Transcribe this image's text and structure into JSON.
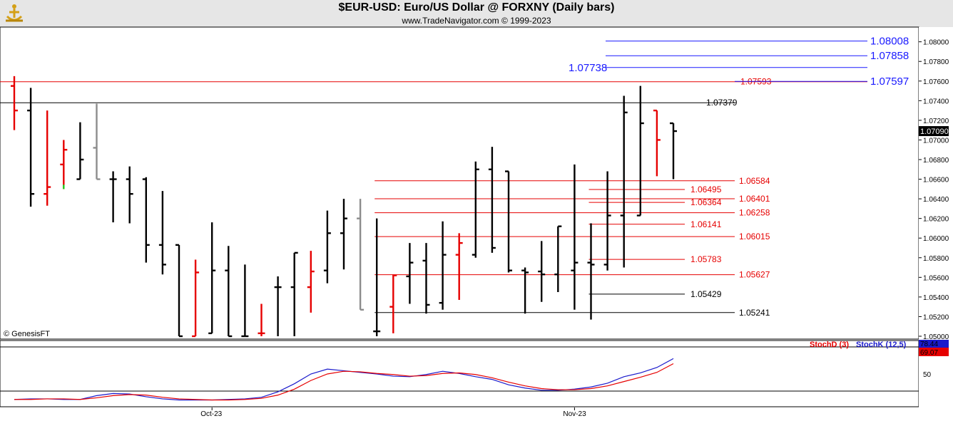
{
  "header": {
    "title": "$EUR-USD:  Euro/US Dollar @ FORXNY  (Daily bars)",
    "subtitle": "www.TradeNavigator.com © 1999-2023"
  },
  "watermark": "© GenesisFT",
  "colors": {
    "up": "#000000",
    "down": "#e60000",
    "neutral": "#8c8c8c",
    "blue_level": "#1a1aff",
    "stoch_d": "#e60000",
    "stoch_k": "#1a1acc"
  },
  "chart_data": [
    {
      "type": "ohlc",
      "title": "$EUR-USD:  Euro/US Dollar @ FORXNY  (Daily bars)",
      "ylim": [
        1.05,
        1.0815
      ],
      "y_ticks": [
        "1.05000",
        "1.05200",
        "1.05400",
        "1.05600",
        "1.05800",
        "1.06000",
        "1.06200",
        "1.06400",
        "1.06600",
        "1.06800",
        "1.07000",
        "1.07200",
        "1.07400",
        "1.07600",
        "1.07800",
        "1.08000"
      ],
      "x_labels": [
        {
          "label": "Oct-23",
          "index": 12
        },
        {
          "label": "Nov-23",
          "index": 34
        }
      ],
      "last_price": "1.07090",
      "bars": [
        {
          "o": 1.0755,
          "h": 1.0765,
          "l": 1.071,
          "c": 1.073,
          "color": "down"
        },
        {
          "o": 1.073,
          "h": 1.0753,
          "l": 1.0632,
          "c": 1.0645,
          "color": "up"
        },
        {
          "o": 1.0645,
          "h": 1.073,
          "l": 1.0633,
          "c": 1.0652,
          "color": "down"
        },
        {
          "o": 1.0675,
          "h": 1.07,
          "l": 1.065,
          "c": 1.069,
          "color": "down",
          "low_mark": "green"
        },
        {
          "o": 1.066,
          "h": 1.0718,
          "l": 1.066,
          "c": 1.068,
          "color": "up"
        },
        {
          "o": 1.0692,
          "h": 1.0737,
          "l": 1.066,
          "c": 1.066,
          "color": "neutral"
        },
        {
          "o": 1.066,
          "h": 1.0668,
          "l": 1.0616,
          "c": 1.066,
          "color": "up"
        },
        {
          "o": 1.066,
          "h": 1.0673,
          "l": 1.0615,
          "c": 1.0645,
          "color": "up"
        },
        {
          "o": 1.066,
          "h": 1.0662,
          "l": 1.0575,
          "c": 1.0593,
          "color": "up"
        },
        {
          "o": 1.0593,
          "h": 1.0648,
          "l": 1.0563,
          "c": 1.0573,
          "color": "up"
        },
        {
          "o": 1.0593,
          "h": 1.0593,
          "l": 1.05,
          "c": 1.05,
          "color": "up"
        },
        {
          "o": 1.05,
          "h": 1.0578,
          "l": 1.05,
          "c": 1.0565,
          "color": "down"
        },
        {
          "o": 1.0503,
          "h": 1.0616,
          "l": 1.0503,
          "c": 1.0567,
          "color": "up"
        },
        {
          "o": 1.0567,
          "h": 1.0592,
          "l": 1.05,
          "c": 1.05,
          "color": "up"
        },
        {
          "o": 1.05,
          "h": 1.0573,
          "l": 1.05,
          "c": 1.05,
          "color": "up"
        },
        {
          "o": 1.0503,
          "h": 1.0533,
          "l": 1.05,
          "c": 1.0503,
          "color": "down"
        },
        {
          "o": 1.055,
          "h": 1.0561,
          "l": 1.05,
          "c": 1.055,
          "color": "up"
        },
        {
          "o": 1.055,
          "h": 1.0585,
          "l": 1.05,
          "c": 1.0585,
          "color": "up"
        },
        {
          "o": 1.055,
          "h": 1.0587,
          "l": 1.0524,
          "c": 1.0566,
          "color": "down"
        },
        {
          "o": 1.0567,
          "h": 1.0628,
          "l": 1.0554,
          "c": 1.0605,
          "color": "up"
        },
        {
          "o": 1.0605,
          "h": 1.064,
          "l": 1.0568,
          "c": 1.062,
          "color": "up"
        },
        {
          "o": 1.062,
          "h": 1.064,
          "l": 1.0527,
          "c": 1.0527,
          "color": "neutral"
        },
        {
          "o": 1.0505,
          "h": 1.062,
          "l": 1.05,
          "c": 1.0505,
          "color": "up"
        },
        {
          "o": 1.053,
          "h": 1.0563,
          "l": 1.0503,
          "c": 1.0562,
          "color": "down"
        },
        {
          "o": 1.0561,
          "h": 1.0595,
          "l": 1.0533,
          "c": 1.0575,
          "color": "up"
        },
        {
          "o": 1.0577,
          "h": 1.0595,
          "l": 1.0523,
          "c": 1.0532,
          "color": "up"
        },
        {
          "o": 1.0534,
          "h": 1.0617,
          "l": 1.0527,
          "c": 1.0583,
          "color": "up"
        },
        {
          "o": 1.0583,
          "h": 1.0605,
          "l": 1.0537,
          "c": 1.0595,
          "color": "down"
        },
        {
          "o": 1.0583,
          "h": 1.0678,
          "l": 1.058,
          "c": 1.067,
          "color": "up"
        },
        {
          "o": 1.067,
          "h": 1.0693,
          "l": 1.0585,
          "c": 1.059,
          "color": "up"
        },
        {
          "o": 1.0668,
          "h": 1.0668,
          "l": 1.0565,
          "c": 1.0567,
          "color": "up"
        },
        {
          "o": 1.0567,
          "h": 1.057,
          "l": 1.0523,
          "c": 1.0565,
          "color": "up"
        },
        {
          "o": 1.0566,
          "h": 1.0597,
          "l": 1.0535,
          "c": 1.0563,
          "color": "up"
        },
        {
          "o": 1.0563,
          "h": 1.0612,
          "l": 1.0545,
          "c": 1.0612,
          "color": "up"
        },
        {
          "o": 1.0567,
          "h": 1.0675,
          "l": 1.0527,
          "c": 1.0575,
          "color": "up"
        },
        {
          "o": 1.0575,
          "h": 1.0615,
          "l": 1.0517,
          "c": 1.0573,
          "color": "up"
        },
        {
          "o": 1.0573,
          "h": 1.0668,
          "l": 1.0567,
          "c": 1.0623,
          "color": "up"
        },
        {
          "o": 1.0623,
          "h": 1.0745,
          "l": 1.057,
          "c": 1.0728,
          "color": "up"
        },
        {
          "o": 1.0623,
          "h": 1.0755,
          "l": 1.0623,
          "c": 1.0717,
          "color": "up"
        },
        {
          "o": 1.073,
          "h": 1.073,
          "l": 1.0663,
          "c": 1.07,
          "color": "down"
        },
        {
          "o": 1.0717,
          "h": 1.0717,
          "l": 1.066,
          "c": 1.0709,
          "color": "up"
        }
      ],
      "levels_black": [
        {
          "label": "1.07379",
          "value": 1.07379,
          "from_index": 0
        },
        {
          "label": "1.05429",
          "value": 1.05429,
          "from_index": 35
        },
        {
          "label": "1.05241",
          "value": 1.05241,
          "from_index": 22
        }
      ],
      "levels_red": [
        {
          "label": "1.07593",
          "value": 1.07593,
          "from_index": 0
        },
        {
          "label": "1.06584",
          "value": 1.06584,
          "from_index": 22
        },
        {
          "label": "1.06495",
          "value": 1.06495,
          "from_index": 35
        },
        {
          "label": "1.06401",
          "value": 1.06401,
          "from_index": 22
        },
        {
          "label": "1.06364",
          "value": 1.06364,
          "from_index": 35
        },
        {
          "label": "1.06258",
          "value": 1.06258,
          "from_index": 22
        },
        {
          "label": "1.06141",
          "value": 1.06141,
          "from_index": 35
        },
        {
          "label": "1.06015",
          "value": 1.06015,
          "from_index": 22
        },
        {
          "label": "1.05783",
          "value": 1.05783,
          "from_index": 35
        },
        {
          "label": "1.05627",
          "value": 1.05627,
          "from_index": 22
        }
      ],
      "levels_blue": [
        {
          "label": "1.08008",
          "value": 1.08008
        },
        {
          "label": "1.07858",
          "value": 1.07858
        },
        {
          "label": "1.07738",
          "value": 1.07738
        },
        {
          "label": "1.07597",
          "value": 1.07597
        }
      ]
    },
    {
      "type": "line",
      "indicator": "stochastic",
      "legend": [
        {
          "name": "StochD (3)",
          "color": "stoch_d"
        },
        {
          "name": "StochK (12,5)",
          "color": "stoch_k"
        }
      ],
      "ylim": [
        0,
        100
      ],
      "y_ticks": [
        "50"
      ],
      "last_values": {
        "stoch_k": "78.44",
        "stoch_d": "69.07"
      },
      "series": [
        {
          "name": "StochK (12,5)",
          "values": [
            3,
            4,
            4,
            3,
            3,
            10,
            14,
            13,
            8,
            4,
            2,
            2,
            2,
            3,
            4,
            7,
            17,
            32,
            50,
            59,
            56,
            53,
            50,
            46,
            45,
            49,
            55,
            51,
            45,
            40,
            30,
            24,
            20,
            20,
            22,
            26,
            33,
            45,
            52,
            62,
            78.44
          ]
        },
        {
          "name": "StochD (3)",
          "values": [
            3,
            3,
            4,
            4,
            3,
            6,
            10,
            12,
            11,
            7,
            4,
            3,
            2,
            2,
            3,
            5,
            11,
            22,
            38,
            50,
            55,
            54,
            51,
            49,
            46,
            47,
            51,
            52,
            49,
            43,
            35,
            28,
            23,
            21,
            21,
            23,
            28,
            36,
            44,
            53,
            69.07
          ]
        }
      ]
    }
  ]
}
